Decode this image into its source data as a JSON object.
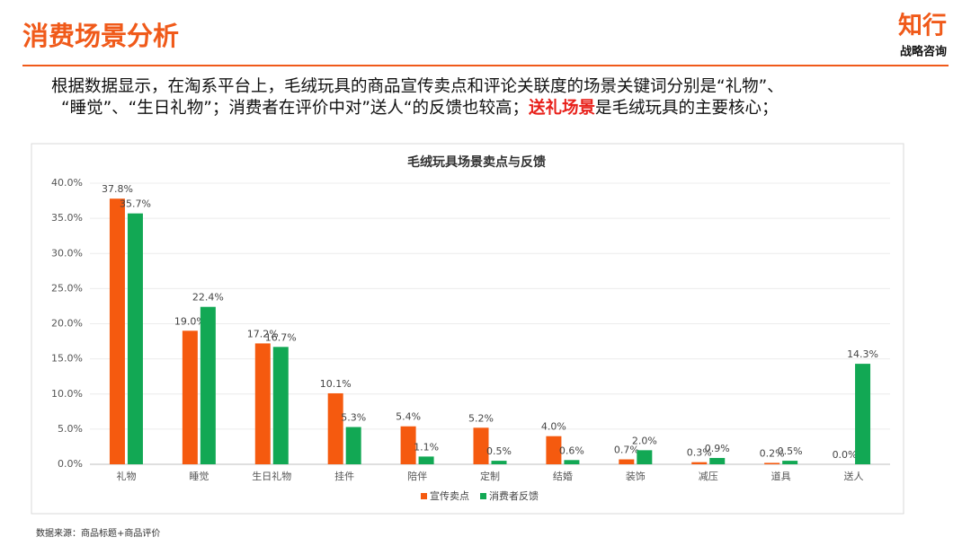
{
  "header": {
    "title": "消费场景分析",
    "logo": "知行",
    "logo_sub": "战略咨询"
  },
  "description": {
    "line1": "根据数据显示，在淘系平台上，毛绒玩具的商品宣传卖点和评论关联度的场景关键词分别是“礼物”、",
    "line2_before": "“睡觉”、“生日礼物”；消费者在评价中对”送人“的反馈也较高；",
    "highlight": "送礼场景",
    "line2_after": "是毛绒玩具的主要核心；"
  },
  "chart_data": {
    "type": "bar",
    "title": "毛绒玩具场景卖点与反馈",
    "categories": [
      "礼物",
      "睡觉",
      "生日礼物",
      "挂件",
      "陪伴",
      "定制",
      "结婚",
      "装饰",
      "减压",
      "道具",
      "送人"
    ],
    "series": [
      {
        "name": "宣传卖点",
        "color": "#f55a0f",
        "values": [
          37.8,
          19.0,
          17.2,
          10.1,
          5.4,
          5.2,
          4.0,
          0.7,
          0.3,
          0.2,
          0.0
        ],
        "value_labels": [
          "37.8%",
          "19.0%",
          "17.2%",
          "10.1%",
          "5.4%",
          "5.2%",
          "4.0%",
          "0.7%",
          "0.3%",
          "0.2%",
          "0.0%"
        ]
      },
      {
        "name": "消费者反馈",
        "color": "#12a854",
        "values": [
          35.7,
          22.4,
          16.7,
          5.3,
          1.1,
          0.5,
          0.6,
          2.0,
          0.9,
          0.5,
          14.3
        ],
        "value_labels": [
          "35.7%",
          "22.4%",
          "16.7%",
          "5.3%",
          "1.1%",
          "0.5%",
          "0.6%",
          "2.0%",
          "0.9%",
          "0.5%",
          "14.3%"
        ]
      }
    ],
    "ylim": [
      0,
      40
    ],
    "yticks": [
      {
        "value": 0,
        "label": "0.0%"
      },
      {
        "value": 5,
        "label": "5.0%"
      },
      {
        "value": 10,
        "label": "10.0%"
      },
      {
        "value": 15,
        "label": "15.0%"
      },
      {
        "value": 20,
        "label": "20.0%"
      },
      {
        "value": 25,
        "label": "25.0%"
      },
      {
        "value": 30,
        "label": "30.0%"
      },
      {
        "value": 35,
        "label": "35.0%"
      },
      {
        "value": 40,
        "label": "40.0%"
      }
    ],
    "grid": true,
    "legend": "bottom"
  },
  "footer": {
    "source": "数据来源：商品标题+商品评价"
  }
}
